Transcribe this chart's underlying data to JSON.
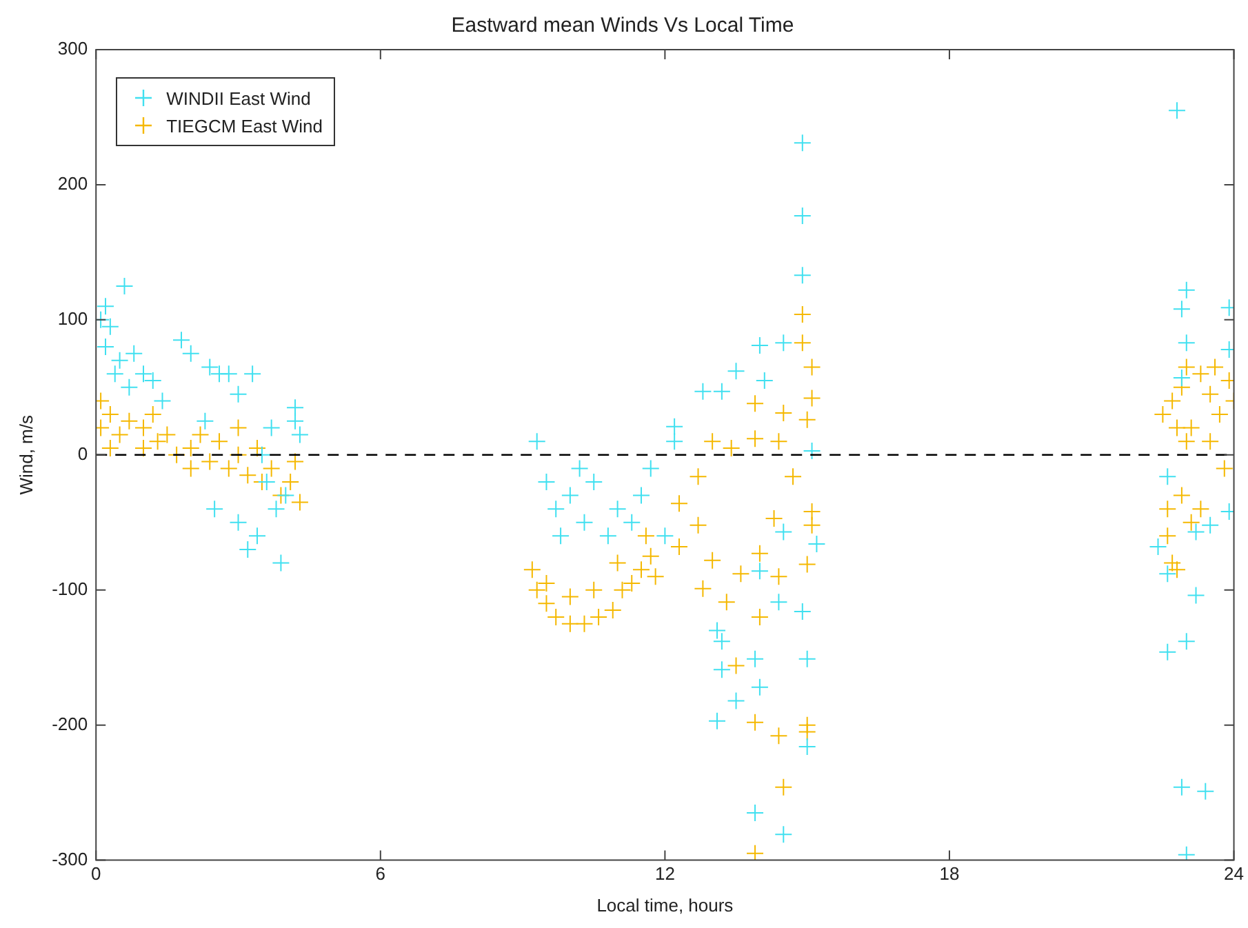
{
  "chart_data": {
    "type": "scatter",
    "title": "Eastward mean Winds Vs Local Time",
    "xlabel": "Local time, hours",
    "ylabel": "Wind, m/s",
    "xlim": [
      0,
      24
    ],
    "xticks": [
      0,
      6,
      12,
      18,
      24
    ],
    "ylim": [
      -300,
      300
    ],
    "yticks": [
      -300,
      -200,
      -100,
      0,
      100,
      200,
      300
    ],
    "grid": false,
    "legend": "top left",
    "ref_lines": [
      {
        "axis": "y",
        "value": 0,
        "color": "#000000",
        "line_style": "dashed"
      }
    ],
    "series": [
      {
        "name": "WINDII East Wind",
        "color": "#40e0f0",
        "marker": "cross",
        "x": [
          0.1,
          0.2,
          0.3,
          0.5,
          0.6,
          0.4,
          0.8,
          1.0,
          1.2,
          0.2,
          0.7,
          1.4,
          1.8,
          2.0,
          2.4,
          2.6,
          2.8,
          3.3,
          3.0,
          2.3,
          3.5,
          3.6,
          2.5,
          3.0,
          3.2,
          3.4,
          3.8,
          3.9,
          4.0,
          4.2,
          4.2,
          4.3,
          3.7,
          9.3,
          9.5,
          9.7,
          10.0,
          10.3,
          10.5,
          10.8,
          11.0,
          11.3,
          11.5,
          11.7,
          9.8,
          10.2,
          12.0,
          12.2,
          14.9,
          14.9,
          14.9,
          14.5,
          14.0,
          13.5,
          12.8,
          12.2,
          13.2,
          14.1,
          15.1,
          15.2,
          14.5,
          14.9,
          14.4,
          14.0,
          13.9,
          13.1,
          13.2,
          13.2,
          13.5,
          13.1,
          14.0,
          13.9,
          14.5,
          15.0,
          15.0,
          22.8,
          23.0,
          22.9,
          23.0,
          22.9,
          23.9,
          23.9,
          22.6,
          23.2,
          23.5,
          23.9,
          22.6,
          22.6,
          23.0,
          23.2,
          22.9,
          23.4,
          23.0,
          22.4
        ],
        "values": [
          100,
          80,
          95,
          70,
          125,
          60,
          75,
          60,
          55,
          110,
          50,
          40,
          85,
          75,
          65,
          60,
          60,
          60,
          45,
          25,
          0,
          -20,
          -40,
          -50,
          -70,
          -60,
          -40,
          -80,
          -30,
          35,
          25,
          15,
          20,
          10,
          -20,
          -40,
          -30,
          -50,
          -20,
          -60,
          -40,
          -50,
          -30,
          -10,
          -60,
          -10,
          -60,
          10,
          231,
          177,
          133,
          83,
          81,
          62,
          47,
          21,
          47,
          55,
          3,
          -66,
          -57,
          -116,
          -109,
          -86,
          -151,
          -130,
          -138,
          -159,
          -182,
          -197,
          -172,
          -265,
          -281,
          -216,
          -151,
          255,
          122,
          108,
          83,
          57,
          109,
          78,
          -16,
          -57,
          -52,
          -42,
          -88,
          -146,
          -138,
          -104,
          -246,
          -249,
          -296,
          -68
        ]
      },
      {
        "name": "TIEGCM East Wind",
        "color": "#f5b800",
        "marker": "cross",
        "x": [
          0.1,
          0.1,
          0.3,
          0.5,
          0.7,
          1.0,
          1.0,
          1.3,
          1.5,
          1.7,
          2.0,
          2.2,
          2.4,
          2.6,
          2.8,
          3.0,
          3.2,
          3.4,
          3.5,
          3.7,
          3.9,
          4.1,
          4.3,
          4.2,
          2.0,
          0.3,
          1.2,
          3.0,
          9.2,
          9.3,
          9.5,
          9.7,
          10.0,
          10.3,
          10.6,
          10.9,
          11.1,
          11.3,
          11.5,
          11.7,
          11.8,
          10.0,
          10.5,
          11.0,
          11.6,
          9.5,
          14.9,
          14.9,
          15.1,
          15.1,
          15.0,
          14.5,
          14.4,
          13.9,
          13.9,
          13.4,
          13.0,
          12.7,
          12.3,
          12.3,
          12.7,
          13.0,
          12.8,
          13.3,
          13.6,
          14.0,
          14.3,
          14.7,
          15.1,
          15.1,
          15.0,
          14.4,
          14.0,
          13.5,
          13.9,
          14.4,
          15.0,
          15.0,
          14.5,
          13.9,
          22.5,
          22.7,
          22.9,
          23.1,
          23.3,
          23.5,
          23.7,
          23.9,
          24.0,
          23.0,
          23.5,
          23.8,
          22.6,
          22.6,
          22.7,
          22.8,
          22.9,
          23.1,
          23.3,
          23.0,
          23.6,
          22.8
        ],
        "values": [
          40,
          20,
          30,
          15,
          25,
          20,
          5,
          10,
          15,
          0,
          5,
          15,
          -5,
          10,
          -10,
          0,
          -15,
          5,
          -20,
          -10,
          -30,
          -20,
          -35,
          -5,
          -10,
          5,
          30,
          20,
          -85,
          -100,
          -110,
          -120,
          -125,
          -125,
          -120,
          -115,
          -100,
          -95,
          -85,
          -75,
          -90,
          -105,
          -100,
          -80,
          -60,
          -95,
          104,
          83,
          65,
          42,
          26,
          31,
          10,
          38,
          12,
          5,
          10,
          -16,
          -36,
          -68,
          -52,
          -78,
          -99,
          -109,
          -88,
          -73,
          -47,
          -16,
          -42,
          -52,
          -81,
          -90,
          -120,
          -156,
          -198,
          -208,
          -200,
          -205,
          -246,
          -295,
          30,
          40,
          50,
          20,
          60,
          45,
          30,
          55,
          40,
          10,
          10,
          -10,
          -40,
          -60,
          -80,
          -85,
          -30,
          -50,
          -40,
          65,
          65,
          20
        ]
      }
    ]
  }
}
